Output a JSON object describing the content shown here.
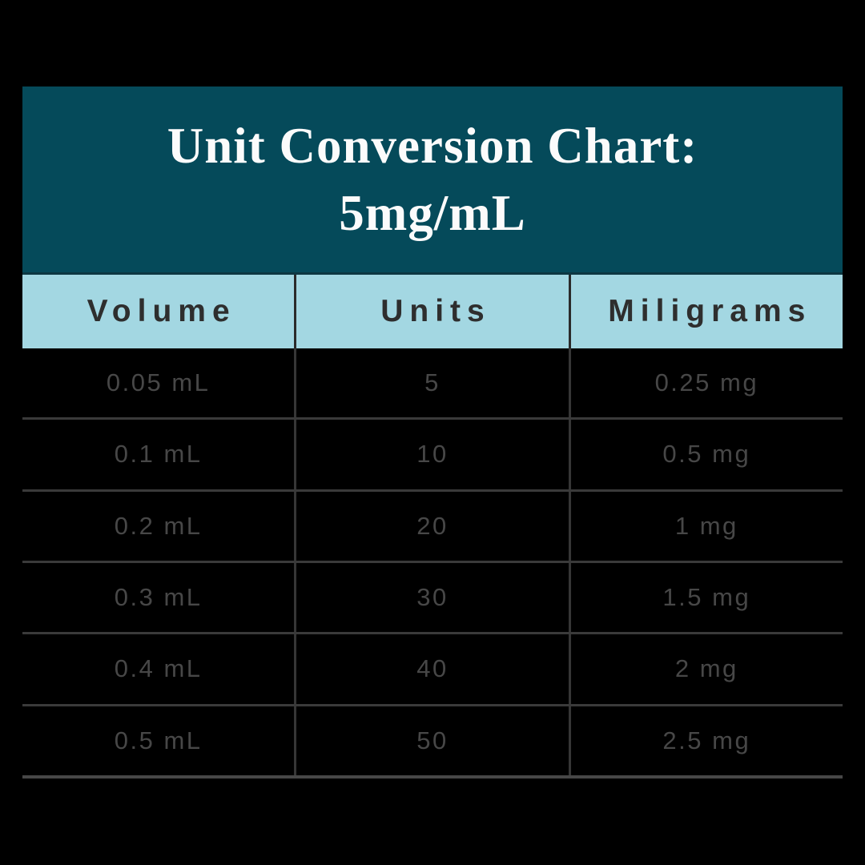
{
  "title": {
    "line1": "Unit Conversion Chart:",
    "line2": "5mg/mL"
  },
  "chart_data": {
    "type": "table",
    "title": "Unit Conversion Chart: 5mg/mL",
    "concentration_mg_per_ml": 5,
    "columns": [
      "Volume",
      "Units",
      "Miligrams"
    ],
    "rows": [
      [
        "0.05 mL",
        "5",
        "0.25 mg"
      ],
      [
        "0.1 mL",
        "10",
        "0.5 mg"
      ],
      [
        "0.2 mL",
        "20",
        "1 mg"
      ],
      [
        "0.3 mL",
        "30",
        "1.5 mg"
      ],
      [
        "0.4 mL",
        "40",
        "2 mg"
      ],
      [
        "0.5 mL",
        "50",
        "2.5 mg"
      ]
    ]
  },
  "colors": {
    "background": "#000000",
    "title_band": "#054A5A",
    "title_text": "#FBFBFB",
    "header_band": "#A3D7E2",
    "header_text": "#2E2E2E",
    "data_text": "#474747",
    "gridline": "#3A3A3A"
  }
}
